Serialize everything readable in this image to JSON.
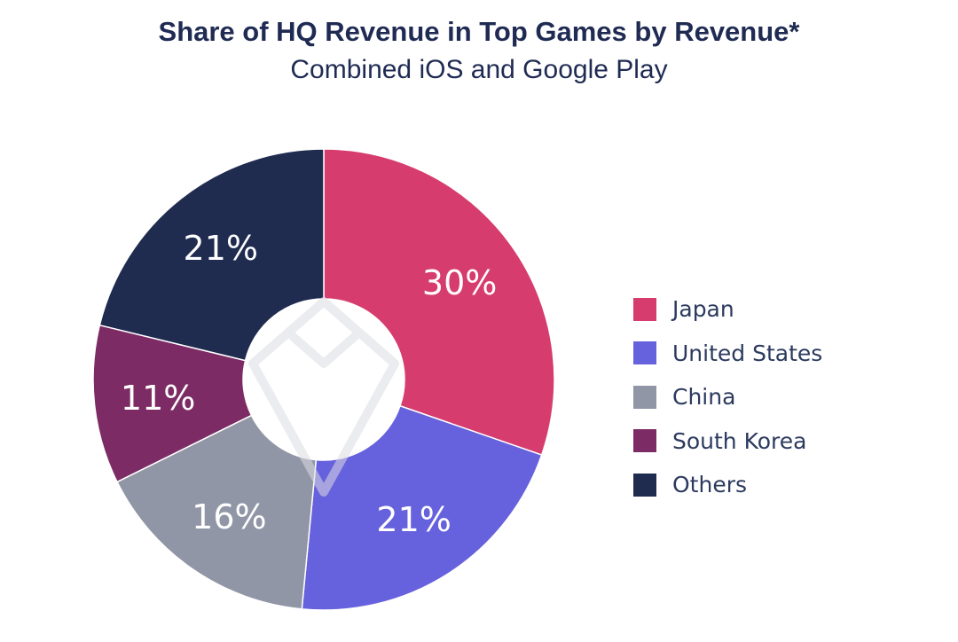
{
  "chart_data": {
    "type": "pie",
    "title": "Share of HQ Revenue in Top Games by Revenue*",
    "subtitle": "Combined iOS and Google Play",
    "categories": [
      "Japan",
      "United States",
      "China",
      "South Korea",
      "Others"
    ],
    "values": [
      30,
      21,
      16,
      11,
      21
    ],
    "labels": [
      "30%",
      "21%",
      "16%",
      "11%",
      "21%"
    ],
    "colors": [
      "#d63c6d",
      "#6661dc",
      "#9196a6",
      "#7d2b64",
      "#1f2b4f"
    ],
    "donut": true,
    "legend_position": "right"
  }
}
